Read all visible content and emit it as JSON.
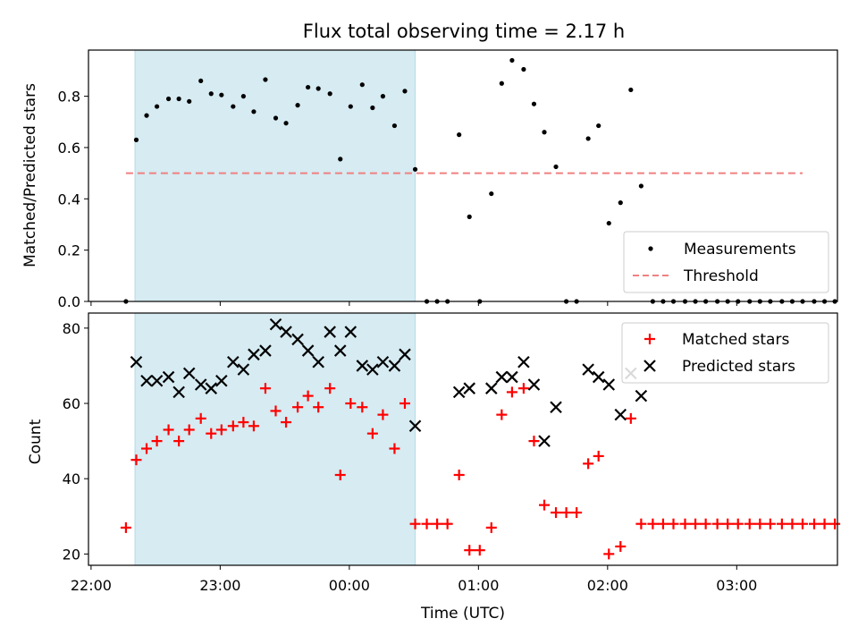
{
  "chart_data": {
    "type": "scatter",
    "title": "Flux total observing time = 2.17 h",
    "xlabel": "Time (UTC)",
    "x_unit": "hours after 22:00 UTC",
    "xlim": [
      -0.02,
      5.78
    ],
    "x_ticks": [
      {
        "value": 0,
        "label": "22:00"
      },
      {
        "value": 1,
        "label": "23:00"
      },
      {
        "value": 2,
        "label": "00:00"
      },
      {
        "value": 3,
        "label": "01:00"
      },
      {
        "value": 4,
        "label": "02:00"
      },
      {
        "value": 5,
        "label": "03:00"
      }
    ],
    "shaded_interval": [
      0.34,
      2.51
    ],
    "grid": false,
    "panels": [
      {
        "id": "ratio",
        "ylabel": "Matched/Predicted stars",
        "ylim": [
          0,
          0.98
        ],
        "y_ticks": [
          0.0,
          0.2,
          0.4,
          0.6,
          0.8
        ],
        "legend_position": "bottom-right",
        "series": [
          {
            "name": "Measurements",
            "marker": "dot",
            "color": "#000000",
            "points": [
              [
                0.27,
                0.0
              ],
              [
                0.35,
                0.63
              ],
              [
                0.43,
                0.725
              ],
              [
                0.51,
                0.76
              ],
              [
                0.6,
                0.79
              ],
              [
                0.68,
                0.79
              ],
              [
                0.76,
                0.78
              ],
              [
                0.85,
                0.86
              ],
              [
                0.93,
                0.81
              ],
              [
                1.01,
                0.805
              ],
              [
                1.1,
                0.76
              ],
              [
                1.18,
                0.8
              ],
              [
                1.26,
                0.74
              ],
              [
                1.35,
                0.865
              ],
              [
                1.43,
                0.715
              ],
              [
                1.51,
                0.695
              ],
              [
                1.6,
                0.765
              ],
              [
                1.68,
                0.835
              ],
              [
                1.76,
                0.83
              ],
              [
                1.85,
                0.81
              ],
              [
                1.93,
                0.555
              ],
              [
                2.01,
                0.76
              ],
              [
                2.1,
                0.845
              ],
              [
                2.18,
                0.755
              ],
              [
                2.26,
                0.8
              ],
              [
                2.35,
                0.685
              ],
              [
                2.43,
                0.82
              ],
              [
                2.51,
                0.515
              ],
              [
                2.6,
                0.0
              ],
              [
                2.68,
                0.0
              ],
              [
                2.76,
                0.0
              ],
              [
                2.85,
                0.65
              ],
              [
                2.93,
                0.33
              ],
              [
                3.01,
                0.0
              ],
              [
                3.1,
                0.42
              ],
              [
                3.18,
                0.85
              ],
              [
                3.26,
                0.94
              ],
              [
                3.35,
                0.905
              ],
              [
                3.43,
                0.77
              ],
              [
                3.51,
                0.66
              ],
              [
                3.6,
                0.525
              ],
              [
                3.68,
                0.0
              ],
              [
                3.76,
                0.0
              ],
              [
                3.85,
                0.635
              ],
              [
                3.93,
                0.685
              ],
              [
                4.01,
                0.305
              ],
              [
                4.1,
                0.385
              ],
              [
                4.18,
                0.825
              ],
              [
                4.26,
                0.45
              ],
              [
                4.35,
                0.0
              ],
              [
                4.43,
                0.0
              ],
              [
                4.51,
                0.0
              ],
              [
                4.6,
                0.0
              ],
              [
                4.68,
                0.0
              ],
              [
                4.76,
                0.0
              ],
              [
                4.85,
                0.0
              ],
              [
                4.93,
                0.0
              ],
              [
                5.01,
                0.0
              ],
              [
                5.1,
                0.0
              ],
              [
                5.18,
                0.0
              ],
              [
                5.26,
                0.0
              ],
              [
                5.35,
                0.0
              ],
              [
                5.43,
                0.0
              ],
              [
                5.51,
                0.0
              ],
              [
                5.6,
                0.0
              ],
              [
                5.68,
                0.0
              ],
              [
                5.76,
                0.0
              ]
            ]
          },
          {
            "name": "Threshold",
            "marker": "dashed-line",
            "color": "#f08080",
            "points": [
              [
                0.27,
                0.5
              ],
              [
                5.51,
                0.5
              ]
            ]
          }
        ]
      },
      {
        "id": "count",
        "ylabel": "Count",
        "ylim": [
          17,
          84
        ],
        "y_ticks": [
          20,
          40,
          60,
          80
        ],
        "legend_position": "top-right",
        "series": [
          {
            "name": "Matched stars",
            "marker": "plus",
            "color": "#ff0000",
            "points": [
              [
                0.27,
                27
              ],
              [
                0.35,
                45
              ],
              [
                0.43,
                48
              ],
              [
                0.51,
                50
              ],
              [
                0.6,
                53
              ],
              [
                0.68,
                50
              ],
              [
                0.76,
                53
              ],
              [
                0.85,
                56
              ],
              [
                0.93,
                52
              ],
              [
                1.01,
                53
              ],
              [
                1.1,
                54
              ],
              [
                1.18,
                55
              ],
              [
                1.26,
                54
              ],
              [
                1.35,
                64
              ],
              [
                1.43,
                58
              ],
              [
                1.51,
                55
              ],
              [
                1.6,
                59
              ],
              [
                1.68,
                62
              ],
              [
                1.76,
                59
              ],
              [
                1.85,
                64
              ],
              [
                1.93,
                41
              ],
              [
                2.01,
                60
              ],
              [
                2.1,
                59
              ],
              [
                2.18,
                52
              ],
              [
                2.26,
                57
              ],
              [
                2.35,
                48
              ],
              [
                2.43,
                60
              ],
              [
                2.51,
                28
              ],
              [
                2.6,
                28
              ],
              [
                2.68,
                28
              ],
              [
                2.76,
                28
              ],
              [
                2.85,
                41
              ],
              [
                2.93,
                21
              ],
              [
                3.01,
                21
              ],
              [
                3.1,
                27
              ],
              [
                3.18,
                57
              ],
              [
                3.26,
                63
              ],
              [
                3.35,
                64
              ],
              [
                3.43,
                50
              ],
              [
                3.51,
                33
              ],
              [
                3.6,
                31
              ],
              [
                3.68,
                31
              ],
              [
                3.76,
                31
              ],
              [
                3.85,
                44
              ],
              [
                3.93,
                46
              ],
              [
                4.01,
                20
              ],
              [
                4.1,
                22
              ],
              [
                4.18,
                56
              ],
              [
                4.26,
                28
              ],
              [
                4.35,
                28
              ],
              [
                4.43,
                28
              ],
              [
                4.51,
                28
              ],
              [
                4.6,
                28
              ],
              [
                4.68,
                28
              ],
              [
                4.76,
                28
              ],
              [
                4.85,
                28
              ],
              [
                4.93,
                28
              ],
              [
                5.01,
                28
              ],
              [
                5.1,
                28
              ],
              [
                5.18,
                28
              ],
              [
                5.26,
                28
              ],
              [
                5.35,
                28
              ],
              [
                5.43,
                28
              ],
              [
                5.51,
                28
              ],
              [
                5.6,
                28
              ],
              [
                5.68,
                28
              ],
              [
                5.76,
                28
              ]
            ]
          },
          {
            "name": "Predicted stars",
            "marker": "x",
            "color": "#000000",
            "points": [
              [
                0.35,
                71
              ],
              [
                0.43,
                66
              ],
              [
                0.51,
                66
              ],
              [
                0.6,
                67
              ],
              [
                0.68,
                63
              ],
              [
                0.76,
                68
              ],
              [
                0.85,
                65
              ],
              [
                0.93,
                64
              ],
              [
                1.01,
                66
              ],
              [
                1.1,
                71
              ],
              [
                1.18,
                69
              ],
              [
                1.26,
                73
              ],
              [
                1.35,
                74
              ],
              [
                1.43,
                81
              ],
              [
                1.51,
                79
              ],
              [
                1.6,
                77
              ],
              [
                1.68,
                74
              ],
              [
                1.76,
                71
              ],
              [
                1.85,
                79
              ],
              [
                1.93,
                74
              ],
              [
                2.01,
                79
              ],
              [
                2.1,
                70
              ],
              [
                2.18,
                69
              ],
              [
                2.26,
                71
              ],
              [
                2.35,
                70
              ],
              [
                2.43,
                73
              ],
              [
                2.51,
                54
              ],
              [
                2.85,
                63
              ],
              [
                2.93,
                64
              ],
              [
                3.1,
                64
              ],
              [
                3.18,
                67
              ],
              [
                3.26,
                67
              ],
              [
                3.35,
                71
              ],
              [
                3.43,
                65
              ],
              [
                3.51,
                50
              ],
              [
                3.6,
                59
              ],
              [
                3.85,
                69
              ],
              [
                3.93,
                67
              ],
              [
                4.01,
                65
              ],
              [
                4.1,
                57
              ],
              [
                4.18,
                68
              ],
              [
                4.26,
                62
              ]
            ]
          }
        ]
      }
    ]
  }
}
